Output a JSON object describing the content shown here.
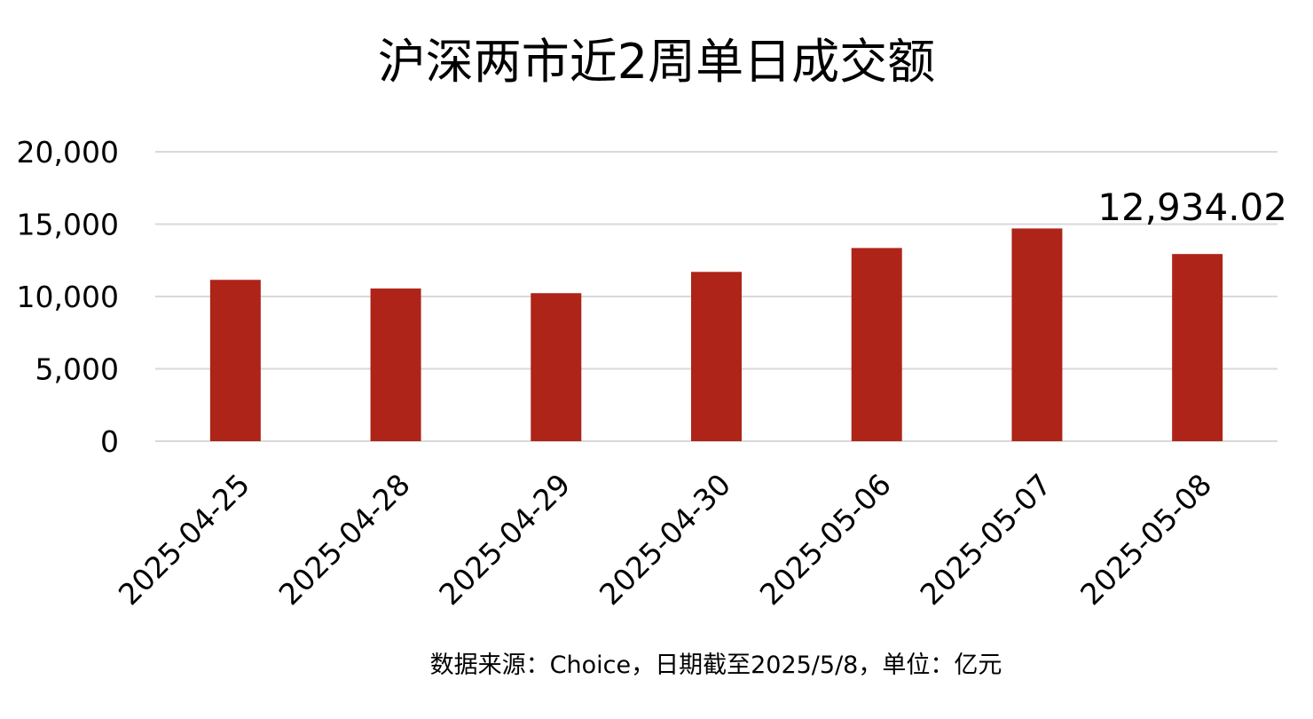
{
  "chart_data": {
    "type": "bar",
    "title": "沪深两市近2周单日成交额",
    "categories": [
      "2025-04-25",
      "2025-04-28",
      "2025-04-29",
      "2025-04-30",
      "2025-05-06",
      "2025-05-07",
      "2025-05-08"
    ],
    "values": [
      11150,
      10550,
      10230,
      11700,
      13350,
      14700,
      12934.02
    ],
    "xlabel": "",
    "ylabel": "",
    "ylim": [
      0,
      20000
    ],
    "yticks": [
      "0",
      "5,000",
      "10,000",
      "15,000",
      "20,000"
    ],
    "grid": true,
    "legend": "none",
    "bar_color": "#ae2418",
    "grid_color": "#d9d9d9",
    "data_label": {
      "category": "2025-05-08",
      "text": "12,934.02"
    },
    "source_note": "数据来源：Choice，日期截至2025/5/8，单位：亿元"
  }
}
